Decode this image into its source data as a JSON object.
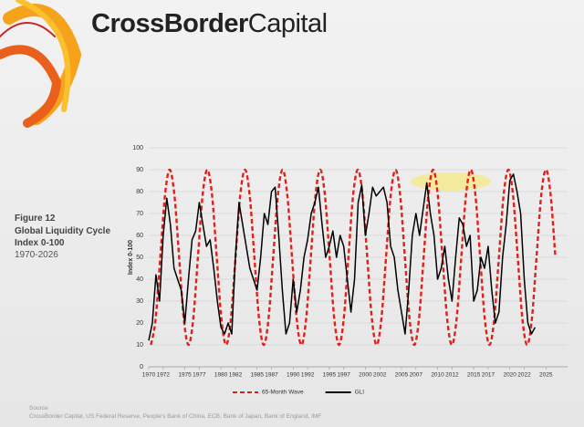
{
  "brand": {
    "bold": "CrossBorder",
    "regular": "Capital"
  },
  "side": {
    "figure": "Figure 12",
    "title": "Global Liquidity Cycle Index 0-100",
    "period": "1970-2026"
  },
  "source": {
    "label": "Source",
    "text": "CrossBorder Capital, US Federal Reserve, People's Bank of China, ECB, Bank of Japan, Bank of England, IMF"
  },
  "chart_data": {
    "type": "line",
    "ylabel": "Index 0-100",
    "xlim": [
      1970,
      2028
    ],
    "ylim": [
      0,
      100
    ],
    "xticks": [
      1970,
      1972,
      1975,
      1977,
      1980,
      1982,
      1985,
      1987,
      1990,
      1992,
      1995,
      1997,
      2000,
      2002,
      2005,
      2007,
      2010,
      2012,
      2015,
      2017,
      2020,
      2022,
      2025
    ],
    "yticks": [
      0,
      10,
      20,
      30,
      40,
      50,
      60,
      70,
      80,
      90,
      100
    ],
    "grid": true,
    "legend": "bottom",
    "series": [
      {
        "name": "65-Month Wave",
        "color": "#e0201b",
        "line_style": "dashed",
        "x": [
          1970.3,
          1970.95,
          1971.6,
          1972.25,
          1972.9,
          1973.56,
          1974.21,
          1974.86,
          1975.51,
          1976.16,
          1976.81,
          1977.46,
          1978.11,
          1978.77,
          1979.42,
          1980.07,
          1980.72,
          1981.37,
          1982.02,
          1982.67,
          1983.33,
          1983.98,
          1984.63,
          1985.28,
          1985.93,
          1986.58,
          1987.23,
          1987.88,
          1988.54,
          1989.19,
          1989.84,
          1990.49,
          1991.14,
          1991.79,
          1992.44,
          1993.09,
          1993.75,
          1994.4,
          1995.05,
          1995.7,
          1996.35,
          1997.0,
          1997.65,
          1998.3,
          1998.96,
          1999.61,
          2000.26,
          2000.91,
          2001.56,
          2002.21,
          2002.86,
          2003.51,
          2004.17,
          2004.82,
          2005.47,
          2006.12,
          2006.77,
          2007.42,
          2008.07,
          2008.72,
          2009.38,
          2010.03,
          2010.68,
          2011.33,
          2011.98,
          2012.63,
          2013.28,
          2013.93,
          2014.59,
          2015.24,
          2015.89,
          2016.54,
          2017.19,
          2017.84,
          2018.49,
          2019.14,
          2019.8,
          2020.45,
          2021.1,
          2021.75,
          2022.4,
          2023.05,
          2023.7,
          2024.35,
          2025.01,
          2025.66,
          2026.31
        ],
        "values": [
          10,
          21.7,
          50,
          78.3,
          90,
          78.3,
          50,
          21.7,
          10,
          21.7,
          50,
          78.3,
          90,
          78.3,
          50,
          21.7,
          10,
          21.7,
          50,
          78.3,
          90,
          78.3,
          50,
          21.7,
          10,
          21.7,
          50,
          78.3,
          90,
          78.3,
          50,
          21.7,
          10,
          21.7,
          50,
          78.3,
          90,
          78.3,
          50,
          21.7,
          10,
          21.7,
          50,
          78.3,
          90,
          78.3,
          50,
          21.7,
          10,
          21.7,
          50,
          78.3,
          90,
          78.3,
          50,
          21.7,
          10,
          21.7,
          50,
          78.3,
          90,
          78.3,
          50,
          21.7,
          10,
          21.7,
          50,
          78.3,
          90,
          78.3,
          50,
          21.7,
          10,
          21.7,
          50,
          78.3,
          90,
          78.3,
          50,
          21.7,
          10,
          21.7,
          50,
          78.3,
          90,
          78.3,
          50
        ]
      },
      {
        "name": "GLI",
        "color": "#000000",
        "line_style": "solid",
        "x": [
          1970,
          1970.5,
          1971,
          1971.5,
          1972,
          1972.5,
          1973,
          1973.5,
          1974,
          1974.5,
          1975,
          1975.5,
          1976,
          1976.5,
          1977,
          1977.5,
          1978,
          1978.5,
          1979,
          1979.5,
          1980,
          1980.5,
          1981,
          1981.5,
          1982,
          1982.5,
          1983,
          1983.5,
          1984,
          1984.5,
          1985,
          1985.5,
          1986,
          1986.5,
          1987,
          1987.5,
          1988,
          1988.5,
          1989,
          1989.5,
          1990,
          1990.5,
          1991,
          1991.5,
          1992,
          1992.5,
          1993,
          1993.5,
          1994,
          1994.5,
          1995,
          1995.5,
          1996,
          1996.5,
          1997,
          1997.5,
          1998,
          1998.5,
          1999,
          1999.5,
          2000,
          2000.5,
          2001,
          2001.5,
          2002,
          2002.5,
          2003,
          2003.5,
          2004,
          2004.5,
          2005,
          2005.5,
          2006,
          2006.5,
          2007,
          2007.5,
          2008,
          2008.5,
          2009,
          2009.5,
          2010,
          2010.5,
          2011,
          2011.5,
          2012,
          2012.5,
          2013,
          2013.5,
          2014,
          2014.5,
          2015,
          2015.5,
          2016,
          2016.5,
          2017,
          2017.5,
          2018,
          2018.5,
          2019,
          2019.5,
          2020,
          2020.5,
          2021,
          2021.5,
          2022,
          2022.5,
          2023,
          2023.5
        ],
        "values": [
          12,
          20,
          42,
          30,
          60,
          77,
          65,
          45,
          40,
          35,
          20,
          40,
          58,
          62,
          75,
          65,
          55,
          58,
          45,
          30,
          18,
          15,
          20,
          15,
          50,
          75,
          65,
          55,
          45,
          40,
          35,
          50,
          70,
          65,
          80,
          82,
          60,
          35,
          15,
          20,
          40,
          25,
          35,
          50,
          58,
          70,
          75,
          82,
          65,
          50,
          55,
          62,
          50,
          60,
          55,
          40,
          25,
          40,
          75,
          83,
          60,
          70,
          82,
          78,
          80,
          82,
          75,
          55,
          50,
          35,
          25,
          15,
          35,
          60,
          70,
          60,
          72,
          84,
          70,
          60,
          40,
          45,
          55,
          40,
          30,
          50,
          68,
          65,
          55,
          60,
          30,
          35,
          50,
          45,
          55,
          35,
          20,
          25,
          50,
          65,
          85,
          88,
          80,
          70,
          40,
          20,
          15,
          18
        ]
      }
    ]
  }
}
